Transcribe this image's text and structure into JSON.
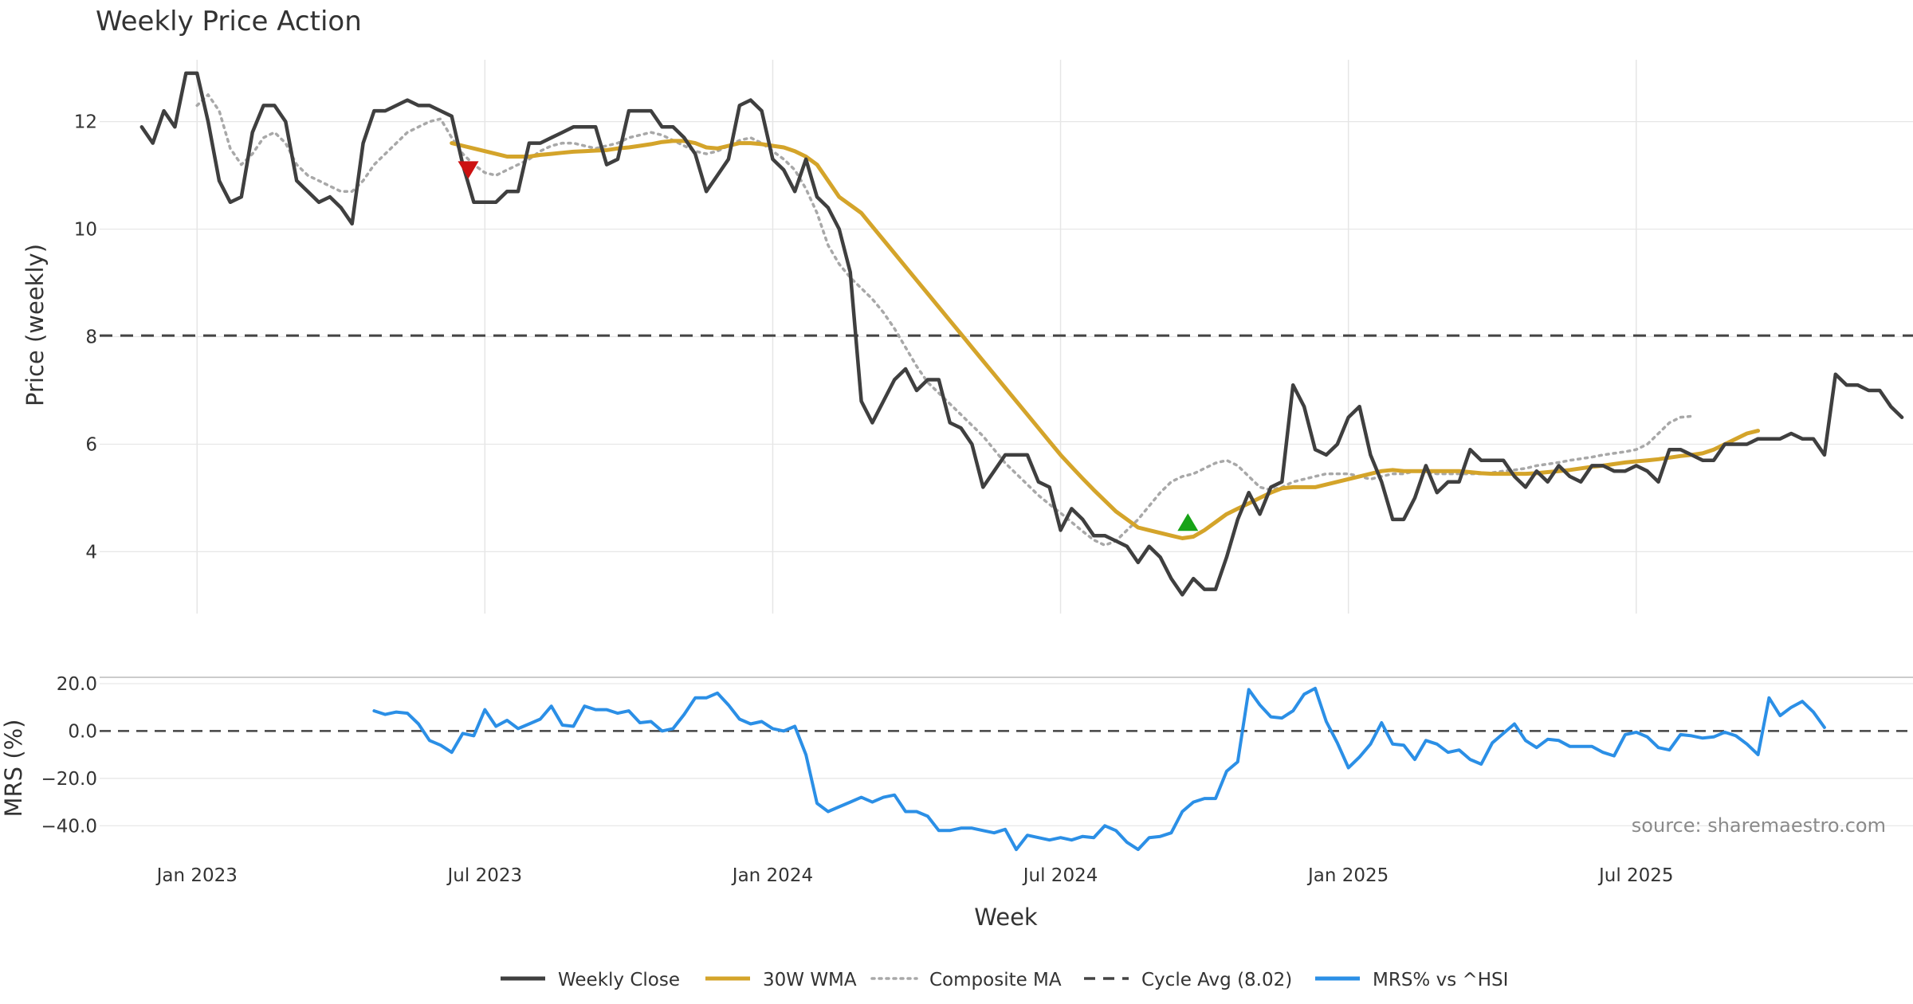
{
  "chart_data": {
    "type": "line",
    "title": "Weekly Price Action",
    "xlabel": "Week",
    "source": "source: sharemaestro.com",
    "x_ticks": [
      "Jan 2023",
      "Jul 2023",
      "Jan 2024",
      "Jul 2024",
      "Jan 2025",
      "Jul 2025"
    ],
    "x_tick_weeks": [
      5,
      31,
      57,
      83,
      109,
      135
    ],
    "week_range": [
      -3.8,
      160
    ],
    "price_panel": {
      "ylabel": "Price (weekly)",
      "ylim": [
        2.85,
        13.15
      ],
      "yticks": [
        4,
        6,
        8,
        10,
        12
      ],
      "cycle_avg": 8.02,
      "weekly_close": [
        11.9,
        11.6,
        12.2,
        11.9,
        12.9,
        12.9,
        12.0,
        10.9,
        10.5,
        10.6,
        11.8,
        12.3,
        12.3,
        12.0,
        10.9,
        10.7,
        10.5,
        10.6,
        10.4,
        10.1,
        11.6,
        12.2,
        12.2,
        12.3,
        12.4,
        12.3,
        12.3,
        12.2,
        12.1,
        11.2,
        10.5,
        10.5,
        10.5,
        10.7,
        10.7,
        11.6,
        11.6,
        11.7,
        11.8,
        11.9,
        11.9,
        11.9,
        11.2,
        11.3,
        12.2,
        12.2,
        12.2,
        11.9,
        11.9,
        11.7,
        11.4,
        10.7,
        11.0,
        11.3,
        12.3,
        12.4,
        12.2,
        11.3,
        11.1,
        10.7,
        11.3,
        10.6,
        10.4,
        10.0,
        9.2,
        6.8,
        6.4,
        6.8,
        7.2,
        7.4,
        7.0,
        7.2,
        7.2,
        6.4,
        6.3,
        6.0,
        5.2,
        5.5,
        5.8,
        5.8,
        5.8,
        5.3,
        5.2,
        4.4,
        4.8,
        4.6,
        4.3,
        4.3,
        4.2,
        4.1,
        3.8,
        4.1,
        3.9,
        3.5,
        3.2,
        3.5,
        3.3,
        3.3,
        3.9,
        4.6,
        5.1,
        4.7,
        5.2,
        5.3,
        7.1,
        6.7,
        5.9,
        5.8,
        6.0,
        6.5,
        6.7,
        5.8,
        5.3,
        4.6,
        4.6,
        5.0,
        5.6,
        5.1,
        5.3,
        5.3,
        5.9,
        5.7,
        5.7,
        5.7,
        5.4,
        5.2,
        5.5,
        5.3,
        5.6,
        5.4,
        5.3,
        5.6,
        5.6,
        5.5,
        5.5,
        5.6,
        5.5,
        5.3,
        5.9,
        5.9,
        5.8,
        5.7,
        5.7,
        6.0,
        6.0,
        6.0,
        6.1,
        6.1,
        6.1,
        6.2,
        6.1,
        6.1,
        5.8,
        7.3,
        7.1,
        7.1,
        7.0,
        7.0,
        6.7,
        6.5
      ],
      "wma_30w": [
        null,
        null,
        null,
        null,
        null,
        null,
        null,
        null,
        null,
        null,
        null,
        null,
        null,
        null,
        null,
        null,
        null,
        null,
        null,
        null,
        null,
        null,
        null,
        null,
        null,
        null,
        null,
        null,
        11.6,
        11.55,
        11.5,
        11.45,
        11.4,
        11.35,
        11.35,
        11.35,
        11.38,
        11.4,
        11.42,
        11.44,
        11.45,
        11.46,
        11.47,
        11.5,
        11.52,
        11.55,
        11.58,
        11.62,
        11.64,
        11.64,
        11.6,
        11.52,
        11.5,
        11.55,
        11.6,
        11.6,
        11.58,
        11.55,
        11.52,
        11.45,
        11.35,
        11.2,
        10.9,
        10.6,
        10.45,
        10.3,
        10.05,
        9.8,
        9.55,
        9.3,
        9.05,
        8.8,
        8.55,
        8.3,
        8.05,
        7.8,
        7.55,
        7.3,
        7.05,
        6.8,
        6.55,
        6.3,
        6.05,
        5.8,
        5.58,
        5.36,
        5.15,
        4.95,
        4.75,
        4.6,
        4.45,
        4.4,
        4.35,
        4.3,
        4.25,
        4.28,
        4.4,
        4.55,
        4.7,
        4.8,
        4.9,
        5.0,
        5.1,
        5.18,
        5.2,
        5.2,
        5.2,
        5.25,
        5.3,
        5.35,
        5.4,
        5.45,
        5.5,
        5.52,
        5.5,
        5.5,
        5.5,
        5.5,
        5.5,
        5.5,
        5.48,
        5.46,
        5.45,
        5.45,
        5.45,
        5.45,
        5.46,
        5.48,
        5.5,
        5.52,
        5.55,
        5.58,
        5.6,
        5.63,
        5.66,
        5.68,
        5.7,
        5.72,
        5.75,
        5.78,
        5.8,
        5.83,
        5.9,
        6.0,
        6.1,
        6.2,
        6.25
      ],
      "composite_ma": [
        null,
        null,
        null,
        null,
        null,
        12.3,
        12.5,
        12.2,
        11.5,
        11.2,
        11.4,
        11.7,
        11.8,
        11.6,
        11.2,
        11.0,
        10.9,
        10.8,
        10.7,
        10.7,
        10.9,
        11.2,
        11.4,
        11.6,
        11.8,
        11.9,
        12.0,
        12.05,
        11.7,
        11.4,
        11.2,
        11.05,
        11.0,
        11.1,
        11.2,
        11.3,
        11.45,
        11.55,
        11.6,
        11.6,
        11.55,
        11.5,
        11.55,
        11.6,
        11.7,
        11.75,
        11.8,
        11.75,
        11.65,
        11.55,
        11.45,
        11.4,
        11.45,
        11.55,
        11.65,
        11.7,
        11.6,
        11.45,
        11.3,
        11.1,
        10.75,
        10.3,
        9.7,
        9.35,
        9.1,
        8.9,
        8.7,
        8.45,
        8.15,
        7.8,
        7.45,
        7.15,
        6.95,
        6.75,
        6.55,
        6.35,
        6.15,
        5.9,
        5.65,
        5.45,
        5.25,
        5.05,
        4.88,
        4.72,
        4.55,
        4.38,
        4.22,
        4.12,
        4.2,
        4.4,
        4.6,
        4.85,
        5.1,
        5.3,
        5.4,
        5.45,
        5.55,
        5.65,
        5.7,
        5.6,
        5.4,
        5.2,
        5.15,
        5.2,
        5.3,
        5.35,
        5.4,
        5.45,
        5.45,
        5.45,
        5.4,
        5.35,
        5.4,
        5.45,
        5.45,
        5.5,
        5.48,
        5.45,
        5.45,
        5.45,
        5.45,
        5.45,
        5.47,
        5.5,
        5.52,
        5.55,
        5.6,
        5.63,
        5.66,
        5.7,
        5.73,
        5.76,
        5.8,
        5.83,
        5.86,
        5.9,
        6.0,
        6.2,
        6.4,
        6.5,
        6.52
      ],
      "wma_start_week": 25,
      "composite_start_week": 0,
      "signals": [
        {
          "type": "sell",
          "week": 29.5,
          "price": 11.1,
          "color": "#cc1111"
        },
        {
          "type": "buy",
          "week": 94.5,
          "price": 4.55,
          "color": "#17a317"
        }
      ]
    },
    "mrs_panel": {
      "ylabel": "MRS (%)",
      "ylim": [
        -52,
        22
      ],
      "yticks": [
        20.0,
        0.0,
        -20.0,
        -40.0
      ],
      "ytick_labels": [
        "20.0",
        "0.0",
        "−20.0",
        "−40.0"
      ],
      "start_week": 21,
      "values": [
        8.5,
        7,
        8,
        7.5,
        3,
        -4,
        -6,
        -9,
        -1,
        -2,
        9,
        2,
        4.5,
        1,
        3,
        5,
        10.5,
        2.5,
        2,
        10.5,
        9,
        9,
        7.5,
        8.5,
        3.5,
        4,
        0,
        1,
        7,
        14,
        14,
        16,
        11,
        5,
        3,
        4,
        1,
        0,
        2,
        -10,
        -30.5,
        -34,
        -32,
        -30,
        -28,
        -30,
        -28,
        -27,
        -34,
        -34,
        -36,
        -42,
        -42,
        -41,
        -41,
        -42,
        -43,
        -41.5,
        -50,
        -44,
        -45,
        -46,
        -45,
        -46,
        -44.5,
        -45,
        -40,
        -42,
        -47,
        -50,
        -45,
        -44.5,
        -43,
        -34,
        -30,
        -28.5,
        -28.5,
        -17,
        -13,
        17.5,
        11,
        6,
        5.5,
        8.5,
        15.5,
        18,
        4,
        -5,
        -15.5,
        -11,
        -5.5,
        3.5,
        -5.5,
        -6,
        -12,
        -4,
        -5.5,
        -9,
        -8,
        -12,
        -14,
        -5,
        -1,
        3,
        -4,
        -7,
        -3.5,
        -4,
        -6.5,
        -6.5,
        -6.5,
        -9,
        -10.5,
        -1.5,
        -0.5,
        -2.5,
        -7,
        -8,
        -1.5,
        -2,
        -3,
        -2.5,
        -0.5,
        -2,
        -5.5,
        -10,
        14,
        6.5,
        10,
        12.5,
        8,
        1.5
      ]
    },
    "legend": [
      {
        "label": "Weekly Close",
        "color": "#3f3f3f",
        "style": "solid"
      },
      {
        "label": "30W WMA",
        "color": "#d4a42a",
        "style": "solid"
      },
      {
        "label": "Composite MA",
        "color": "#a8a8a8",
        "style": "dotted"
      },
      {
        "label": "Cycle Avg (8.02)",
        "color": "#444444",
        "style": "dashed"
      },
      {
        "label": "MRS% vs ^HSI",
        "color": "#2b8fe6",
        "style": "solid"
      }
    ],
    "colors": {
      "weekly_close": "#3f3f3f",
      "wma": "#d4a42a",
      "composite": "#a8a8a8",
      "cycle_avg": "#444444",
      "mrs": "#2b8fe6",
      "grid": "#e6e6e6"
    }
  }
}
